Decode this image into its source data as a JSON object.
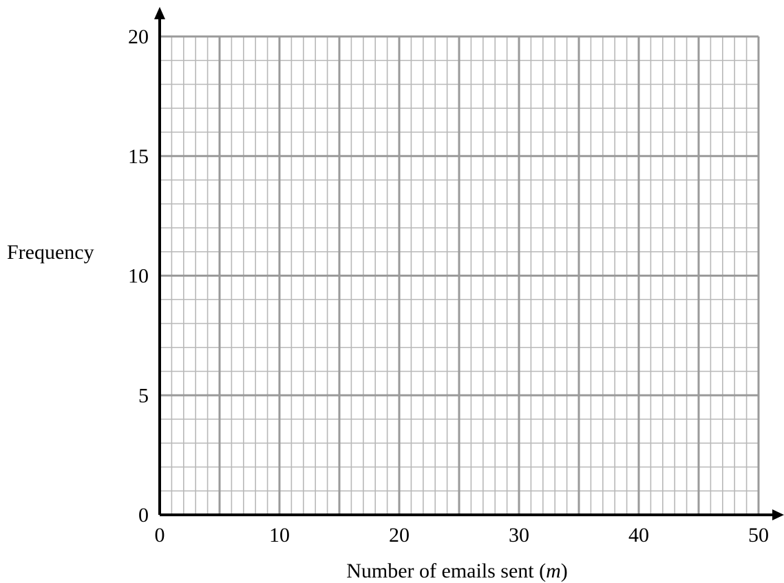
{
  "chart_data": {
    "type": "scatter",
    "title": "",
    "xlabel": "Number of emails sent (",
    "xlabel_var": "m",
    "xlabel_end": ")",
    "ylabel": "Frequency",
    "xlim": [
      0,
      50
    ],
    "ylim": [
      0,
      20
    ],
    "x_ticks": [
      "0",
      "10",
      "20",
      "30",
      "40",
      "50"
    ],
    "y_ticks": [
      "0",
      "5",
      "10",
      "15",
      "20"
    ],
    "x_major_step": 5,
    "y_major_step": 5,
    "x_minor_step": 1,
    "y_minor_step": 1,
    "grid": true,
    "series": [],
    "colors": {
      "grid_minor": "#b8b8b8",
      "grid_major": "#9a9a9a",
      "axis": "#000000"
    }
  }
}
